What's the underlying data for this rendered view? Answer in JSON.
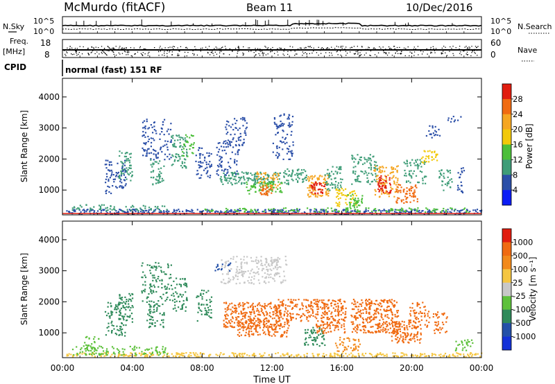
{
  "header": {
    "title": "McMurdo (fitACF)",
    "beam": "Beam 11",
    "date": "10/Dec/2016"
  },
  "colors": {
    "power": [
      "#0b1cf5",
      "#2b4fa8",
      "#3f9d78",
      "#4cbf3a",
      "#f2c90a",
      "#f5a623",
      "#f06b12",
      "#e11d0f"
    ],
    "velocity": [
      "#e11d0f",
      "#f06b12",
      "#f28a1c",
      "#f5c642",
      "#c8c8c8",
      "#5ec13c",
      "#2f8a5a",
      "#2451a8",
      "#1432d8"
    ]
  },
  "chart_data": [
    {
      "type": "line",
      "panel": "noise-panel",
      "left_labels": {
        "title": "N.Sky",
        "top": "10^5",
        "bottom": "10^0"
      },
      "right_labels": {
        "title": "N.Search",
        "top": "10^5",
        "bottom": "10^0"
      }
    },
    {
      "type": "scatter",
      "panel": "freq-nave-panel",
      "left_labels": {
        "title": "Freq.",
        "unit": "[MHz]",
        "top": "18",
        "bottom": "8"
      },
      "right_labels": {
        "title": "Nave",
        "top": "60",
        "bottom": "0"
      }
    },
    {
      "type": "table",
      "panel": "cpid-panel",
      "label": "CPID",
      "text": "normal (fast) 151 RF"
    },
    {
      "type": "heatmap",
      "panel": "power-panel",
      "ylabel": "Slant Range [km]",
      "yticks": [
        "1000",
        "2000",
        "3000",
        "4000"
      ],
      "ylim": [
        200,
        4600
      ],
      "xlim": [
        0,
        24
      ],
      "colorbar": {
        "label": "Power [dB]",
        "ticks": [
          "4",
          "8",
          "12",
          "16",
          "20",
          "24",
          "28"
        ]
      }
    },
    {
      "type": "heatmap",
      "panel": "velocity-panel",
      "ylabel": "Slant Range [km]",
      "yticks": [
        "1000",
        "2000",
        "3000",
        "4000"
      ],
      "ylim": [
        200,
        4600
      ],
      "xlim": [
        0,
        24
      ],
      "colorbar": {
        "label": "Velocity [m s⁻¹]",
        "ticks": [
          "1000",
          "500",
          "100",
          "25",
          "-25",
          "-100",
          "-500",
          "-1000"
        ]
      }
    }
  ],
  "xaxis": {
    "ticks": [
      "00:00",
      "04:00",
      "08:00",
      "12:00",
      "16:00",
      "20:00",
      "00:00"
    ],
    "label": "Time UT"
  }
}
